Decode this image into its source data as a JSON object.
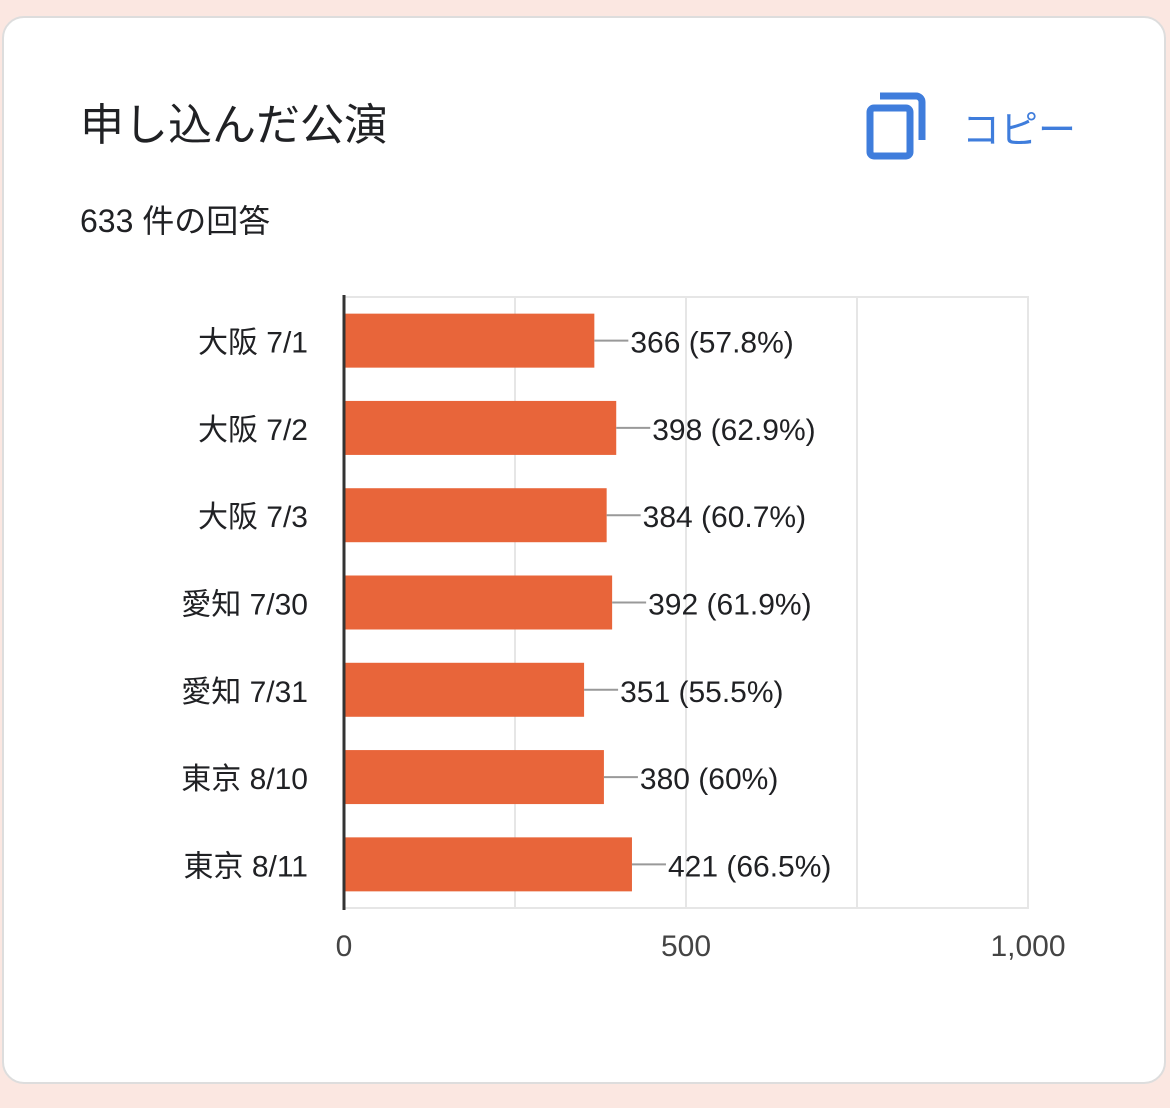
{
  "header": {
    "title": "申し込んだ公演",
    "copy_label": "コピー",
    "copy_icon": "copy-icon",
    "response_count": "633 件の回答"
  },
  "colors": {
    "bar": "#e8653a",
    "accent": "#3f7ddc",
    "grid": "#e6e6e6",
    "axis": "#333333",
    "leader": "#999999"
  },
  "chart_data": {
    "type": "bar",
    "orientation": "horizontal",
    "categories": [
      "大阪 7/1",
      "大阪 7/2",
      "大阪 7/3",
      "愛知 7/30",
      "愛知 7/31",
      "東京 8/10",
      "東京 8/11"
    ],
    "values": [
      366,
      398,
      384,
      392,
      351,
      380,
      421
    ],
    "data_labels": [
      "366 (57.8%)",
      "398 (62.9%)",
      "384 (60.7%)",
      "392 (61.9%)",
      "351 (55.5%)",
      "380 (60%)",
      "421 (66.5%)"
    ],
    "xlim": [
      0,
      1000
    ],
    "x_ticks": [
      0,
      500,
      1000
    ],
    "x_tick_labels": [
      "0",
      "500",
      "1,000"
    ],
    "grid": true,
    "legend": "none"
  }
}
